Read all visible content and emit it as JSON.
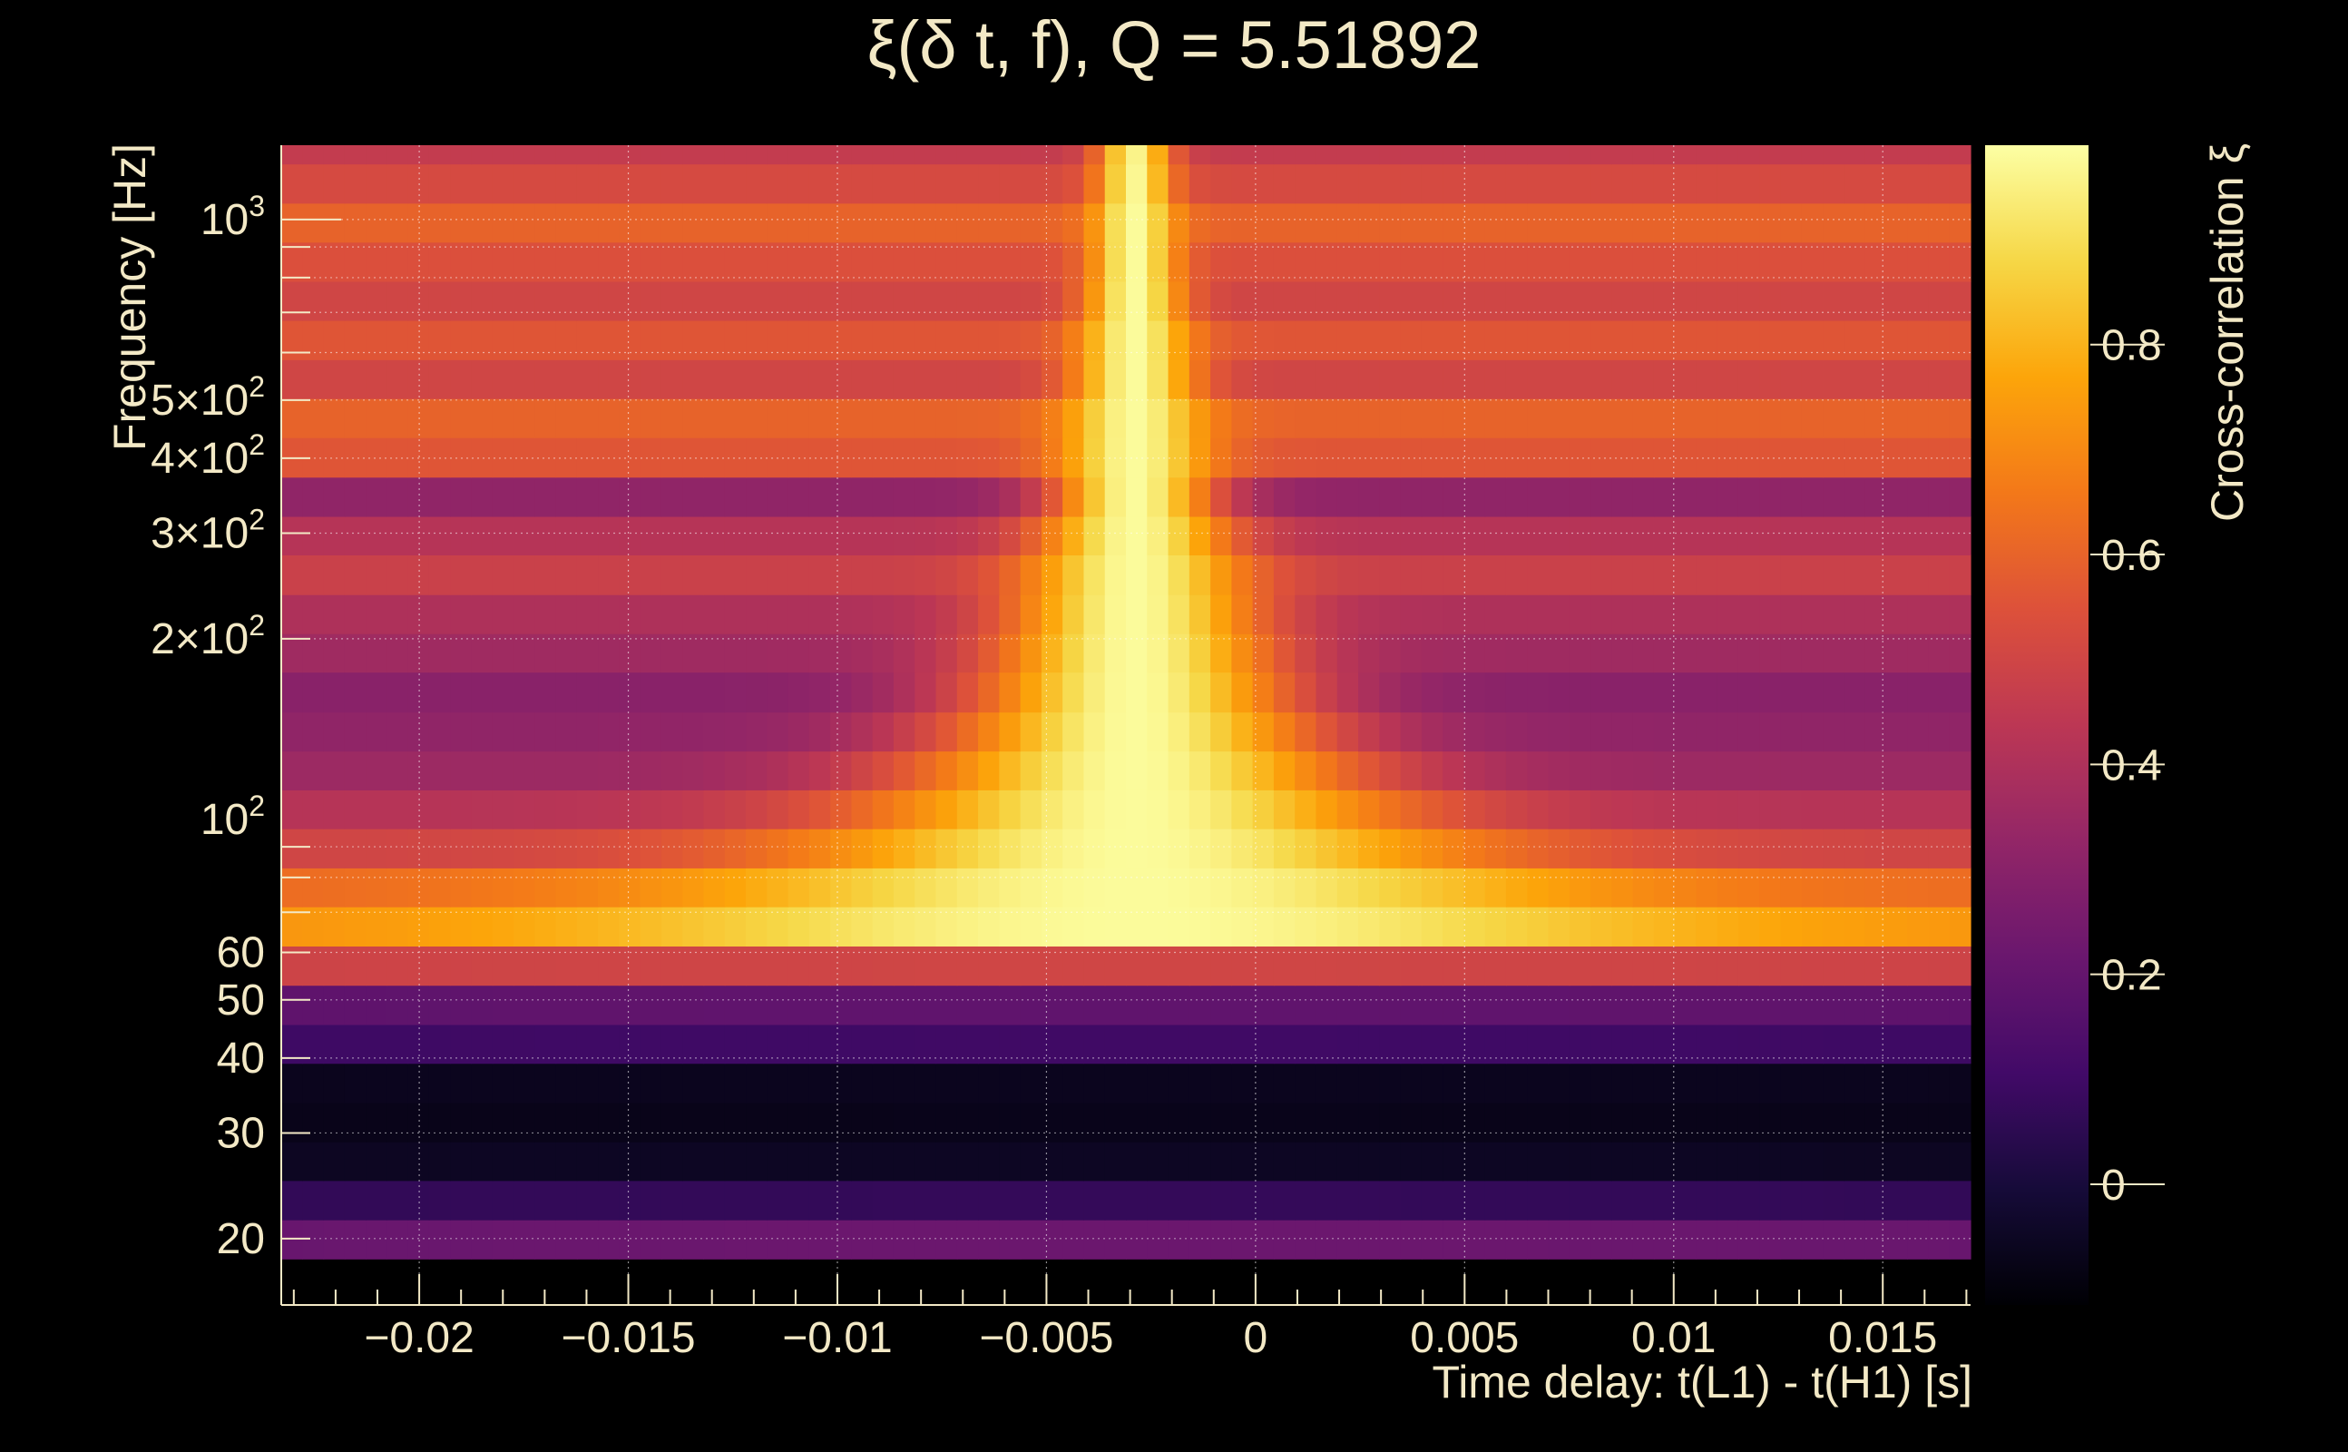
{
  "chart_data": {
    "type": "heatmap",
    "title": "ξ(δ t, f), Q = 5.51892",
    "xlabel": "Time delay: t(L1) - t(H1) [s]",
    "ylabel": "Frequency [Hz]",
    "colorbar_label": "Cross-correlation ξ",
    "xlim": [
      -0.0233,
      0.0171
    ],
    "ylim": [
      15.5,
      1330
    ],
    "y_scale": "log",
    "clim": [
      -0.115,
      0.99
    ],
    "colormap": "inferno",
    "grid": true,
    "x_ticks": [
      -0.02,
      -0.015,
      -0.01,
      -0.005,
      0,
      0.005,
      0.01,
      0.015
    ],
    "x_tick_labels": [
      "−0.02",
      "−0.015",
      "−0.01",
      "−0.005",
      "0",
      "0.005",
      "0.01",
      "0.015"
    ],
    "y_ticks": [
      {
        "value": 1000,
        "mantissa": "",
        "base": "10",
        "exp": "3"
      },
      {
        "value": 500,
        "mantissa": "5×",
        "base": "10",
        "exp": "2"
      },
      {
        "value": 400,
        "mantissa": "4×",
        "base": "10",
        "exp": "2"
      },
      {
        "value": 300,
        "mantissa": "3×",
        "base": "10",
        "exp": "2"
      },
      {
        "value": 200,
        "mantissa": "2×",
        "base": "10",
        "exp": "2"
      },
      {
        "value": 100,
        "mantissa": "",
        "base": "10",
        "exp": "2"
      },
      {
        "value": 60,
        "mantissa": "60",
        "base": "",
        "exp": ""
      },
      {
        "value": 50,
        "mantissa": "50",
        "base": "",
        "exp": ""
      },
      {
        "value": 40,
        "mantissa": "40",
        "base": "",
        "exp": ""
      },
      {
        "value": 30,
        "mantissa": "30",
        "base": "",
        "exp": ""
      },
      {
        "value": 20,
        "mantissa": "20",
        "base": "",
        "exp": ""
      }
    ],
    "colorbar_ticks": [
      0,
      0.2,
      0.4,
      0.6,
      0.8
    ],
    "colorbar_tick_labels": [
      "0",
      "0.2",
      "0.4",
      "0.6",
      "0.8"
    ],
    "peak_delay": -0.0029,
    "rows": [
      {
        "f_low": 18.5,
        "f_high": 21.5,
        "base": 0.18,
        "peak": 0.22,
        "width": 0.03
      },
      {
        "f_low": 21.5,
        "f_high": 25.0,
        "base": 0.05,
        "peak": 0.07,
        "width": 0.03
      },
      {
        "f_low": 25.0,
        "f_high": 29.0,
        "base": -0.06,
        "peak": -0.05,
        "width": 0.03
      },
      {
        "f_low": 29.0,
        "f_high": 33.7,
        "base": -0.08,
        "peak": -0.07,
        "width": 0.03
      },
      {
        "f_low": 33.7,
        "f_high": 39.2,
        "base": -0.07,
        "peak": -0.06,
        "width": 0.03
      },
      {
        "f_low": 39.2,
        "f_high": 45.5,
        "base": 0.08,
        "peak": 0.1,
        "width": 0.03
      },
      {
        "f_low": 45.5,
        "f_high": 52.9,
        "base": 0.17,
        "peak": 0.19,
        "width": 0.03
      },
      {
        "f_low": 52.9,
        "f_high": 61.5,
        "base": 0.46,
        "peak": 0.5,
        "width": 0.03
      },
      {
        "f_low": 61.5,
        "f_high": 71.5,
        "base": 0.72,
        "peak": 0.98,
        "width": 0.0085
      },
      {
        "f_low": 71.5,
        "f_high": 83.0,
        "base": 0.62,
        "peak": 0.98,
        "width": 0.0072
      },
      {
        "f_low": 83.0,
        "f_high": 96.5,
        "base": 0.5,
        "peak": 0.98,
        "width": 0.0055
      },
      {
        "f_low": 96.5,
        "f_high": 112.0,
        "base": 0.42,
        "peak": 0.98,
        "width": 0.0045
      },
      {
        "f_low": 112.0,
        "f_high": 130.0,
        "base": 0.35,
        "peak": 0.98,
        "width": 0.0038
      },
      {
        "f_low": 130.0,
        "f_high": 151.0,
        "base": 0.32,
        "peak": 0.98,
        "width": 0.0032
      },
      {
        "f_low": 151.0,
        "f_high": 176.0,
        "base": 0.3,
        "peak": 0.98,
        "width": 0.0028
      },
      {
        "f_low": 176.0,
        "f_high": 204.0,
        "base": 0.36,
        "peak": 0.98,
        "width": 0.0024
      },
      {
        "f_low": 204.0,
        "f_high": 237.0,
        "base": 0.4,
        "peak": 0.98,
        "width": 0.0021
      },
      {
        "f_low": 237.0,
        "f_high": 276.0,
        "base": 0.48,
        "peak": 0.98,
        "width": 0.0018
      },
      {
        "f_low": 276.0,
        "f_high": 320.0,
        "base": 0.42,
        "peak": 0.98,
        "width": 0.0016
      },
      {
        "f_low": 320.0,
        "f_high": 372.0,
        "base": 0.32,
        "peak": 0.98,
        "width": 0.0014
      },
      {
        "f_low": 372.0,
        "f_high": 433.0,
        "base": 0.56,
        "peak": 0.98,
        "width": 0.0012
      },
      {
        "f_low": 433.0,
        "f_high": 503.0,
        "base": 0.6,
        "peak": 0.98,
        "width": 0.0011
      },
      {
        "f_low": 503.0,
        "f_high": 584.0,
        "base": 0.5,
        "peak": 0.98,
        "width": 0.001
      },
      {
        "f_low": 584.0,
        "f_high": 679.0,
        "base": 0.56,
        "peak": 0.98,
        "width": 0.0009
      },
      {
        "f_low": 679.0,
        "f_high": 789.0,
        "base": 0.5,
        "peak": 0.98,
        "width": 0.0008
      },
      {
        "f_low": 789.0,
        "f_high": 917.0,
        "base": 0.54,
        "peak": 0.98,
        "width": 0.0007
      },
      {
        "f_low": 917.0,
        "f_high": 1065.0,
        "base": 0.6,
        "peak": 0.98,
        "width": 0.00065
      },
      {
        "f_low": 1065.0,
        "f_high": 1238.0,
        "base": 0.52,
        "peak": 0.97,
        "width": 0.0006
      },
      {
        "f_low": 1238.0,
        "f_high": 1330.0,
        "base": 0.46,
        "peak": 0.96,
        "width": 0.0006
      }
    ]
  }
}
